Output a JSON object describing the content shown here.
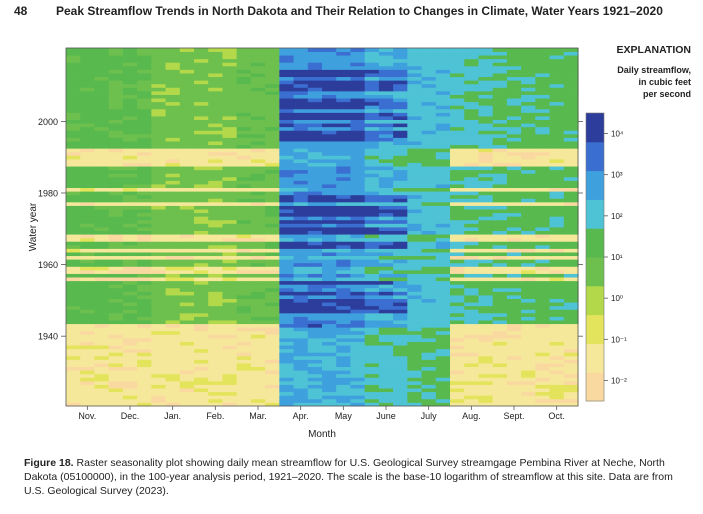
{
  "header": {
    "page_number": "48",
    "running_title": "Peak Streamflow Trends in North Dakota and Their Relation to Changes in Climate, Water Years 1921–2020"
  },
  "chart_data": {
    "type": "heatmap",
    "title": "",
    "xlabel": "Month",
    "ylabel": "Water year",
    "x_tick_labels": [
      "Nov.",
      "Dec.",
      "Jan.",
      "Feb.",
      "Mar.",
      "Apr.",
      "May",
      "June",
      "July",
      "Aug.",
      "Sept.",
      "Oct."
    ],
    "y_ticks": [
      1940,
      1960,
      1980,
      2000
    ],
    "y_range": [
      1921,
      2020
    ],
    "scale": "log10",
    "colorbar": {
      "title_lines": [
        "Daily streamflow,",
        "in cubic feet",
        "per second"
      ],
      "tick_labels": [
        "10⁴",
        "10³",
        "10²",
        "10¹",
        "10⁰",
        "10⁻¹",
        "10⁻²"
      ],
      "tick_log_values": [
        4,
        3,
        2,
        1,
        0,
        -1,
        -2
      ],
      "range_log": [
        -2.5,
        4.5
      ],
      "colors": [
        "#fad9a1",
        "#f5e89a",
        "#e3e45b",
        "#b3d94a",
        "#6dc04e",
        "#58b94f",
        "#4fc3d6",
        "#3fa0de",
        "#3a6fd1",
        "#2d3d9b"
      ]
    },
    "approx_log_flow_by_month_median": [
      1.3,
      1.1,
      0.6,
      0.5,
      0.8,
      3.0,
      3.0,
      2.4,
      2.1,
      1.8,
      1.5,
      1.4
    ],
    "dry_years_low_winter_flow": [
      1921,
      1922,
      1923,
      1924,
      1925,
      1926,
      1927,
      1928,
      1929,
      1930,
      1931,
      1932,
      1933,
      1934,
      1935,
      1936,
      1937,
      1938,
      1939,
      1940,
      1941,
      1942,
      1943,
      1956,
      1958,
      1959,
      1962,
      1964,
      1967,
      1968,
      1977,
      1981,
      1988,
      1989,
      1990,
      1991,
      1992
    ],
    "wet_years_high_spring_flow": [
      1943,
      1947,
      1948,
      1949,
      1950,
      1952,
      1955,
      1965,
      1966,
      1969,
      1970,
      1972,
      1974,
      1975,
      1976,
      1978,
      1979,
      1995,
      1996,
      1997,
      1999,
      2001,
      2002,
      2004,
      2005,
      2006,
      2009,
      2010,
      2011,
      2013,
      2014
    ]
  },
  "explanation": {
    "title": "EXPLANATION"
  },
  "caption": {
    "label": "Figure 18.",
    "text": "Raster seasonality plot showing daily mean streamflow for U.S. Geological Survey streamgage Pembina River at Neche, North Dakota (05100000), in the 100-year analysis period, 1921–2020. The scale is the base-10 logarithm of streamflow at this site. Data are from U.S. Geological Survey (2023)."
  }
}
